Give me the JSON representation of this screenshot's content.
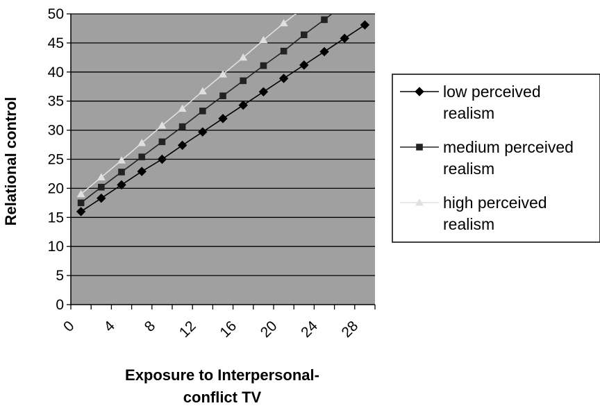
{
  "chart_data": {
    "type": "line",
    "xlabel_lines": [
      "Exposure to Interpersonal-",
      "conflict TV"
    ],
    "ylabel": "Relational control",
    "xlim": [
      0,
      30
    ],
    "ylim": [
      0,
      50
    ],
    "x_ticks": [
      "0",
      "4",
      "8",
      "12",
      "16",
      "20",
      "24",
      "28"
    ],
    "y_ticks": [
      "0",
      "5",
      "10",
      "15",
      "20",
      "25",
      "30",
      "35",
      "40",
      "45",
      "50"
    ],
    "grid": "horizontal",
    "legend_position": "right",
    "background": "#a0a0a0",
    "series": [
      {
        "name_lines": [
          "low perceived",
          "realism"
        ],
        "color": "#000000",
        "marker": "diamond",
        "x": [
          1,
          3,
          5,
          7,
          9,
          11,
          13,
          15,
          17,
          19,
          21,
          23,
          25,
          27,
          29
        ],
        "y": [
          16.0,
          18.3,
          20.6,
          22.9,
          25.0,
          27.4,
          29.7,
          32.0,
          34.3,
          36.6,
          38.9,
          41.2,
          43.5,
          45.8,
          48.1
        ],
        "line_end": [
          29,
          48.1
        ]
      },
      {
        "name_lines": [
          "medium perceived",
          "realism"
        ],
        "color": "#222222",
        "marker": "square",
        "x": [
          1,
          3,
          5,
          7,
          9,
          11,
          13,
          15,
          17,
          19,
          21,
          23,
          25
        ],
        "y": [
          17.5,
          20.2,
          22.8,
          25.4,
          28.0,
          30.6,
          33.3,
          35.9,
          38.5,
          41.1,
          43.6,
          46.4,
          49.0
        ],
        "line_end": [
          26.5,
          51.0
        ]
      },
      {
        "name_lines": [
          "high perceived",
          "realism"
        ],
        "color": "#e0e0e0",
        "marker": "triangle",
        "x": [
          1,
          3,
          5,
          7,
          9,
          11,
          13,
          15,
          17,
          19,
          21
        ],
        "y": [
          19.0,
          21.9,
          24.8,
          27.8,
          30.8,
          33.7,
          36.7,
          39.6,
          42.5,
          45.5,
          48.4
        ],
        "line_end": [
          23.3,
          51.5
        ]
      }
    ]
  }
}
